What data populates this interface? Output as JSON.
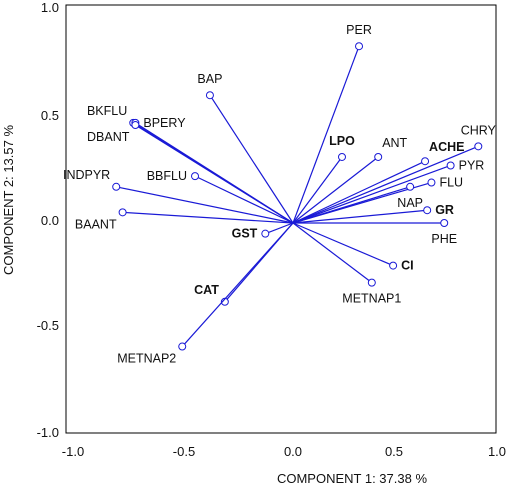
{
  "chart_data": {
    "type": "scatter",
    "subtype": "biplot-vectors",
    "xlabel": "COMPONENT 1:  37.38 %",
    "ylabel": "COMPONENT 2: 13.57 %",
    "xlim": [
      -1.0,
      1.0
    ],
    "ylim": [
      -1.0,
      1.0
    ],
    "x_ticks": [
      "-1.0",
      "-0.5",
      "0.0",
      "0.5",
      "1.0"
    ],
    "y_ticks": [
      "1.0",
      "0.5",
      "0.0",
      "-0.5",
      "-1.0"
    ],
    "grid": false,
    "colors": {
      "vector": "#1a1ad6",
      "frame": "#000000"
    },
    "points": [
      {
        "label": "PER",
        "x": 0.31,
        "y": 0.83,
        "bold": false,
        "anchor": "top"
      },
      {
        "label": "BAP",
        "x": -0.39,
        "y": 0.6,
        "bold": false,
        "anchor": "top"
      },
      {
        "label": "BKFLU",
        "x": -0.75,
        "y": 0.47,
        "bold": false,
        "anchor": "topleft"
      },
      {
        "label": "BPERY",
        "x": -0.74,
        "y": 0.47,
        "bold": false,
        "anchor": "right"
      },
      {
        "label": "DBANT",
        "x": -0.74,
        "y": 0.46,
        "bold": false,
        "anchor": "bottomleft"
      },
      {
        "label": "INDPYR",
        "x": -0.83,
        "y": 0.17,
        "bold": false,
        "anchor": "topleft"
      },
      {
        "label": "BBFLU",
        "x": -0.46,
        "y": 0.22,
        "bold": false,
        "anchor": "left"
      },
      {
        "label": "BAANT",
        "x": -0.8,
        "y": 0.05,
        "bold": false,
        "anchor": "bottomleft"
      },
      {
        "label": "LPO",
        "x": 0.23,
        "y": 0.31,
        "bold": true,
        "anchor": "top"
      },
      {
        "label": "ANT",
        "x": 0.4,
        "y": 0.31,
        "bold": false,
        "anchor": "topright"
      },
      {
        "label": "ACHE",
        "x": 0.62,
        "y": 0.29,
        "bold": true,
        "anchor": "topright"
      },
      {
        "label": "CHRY",
        "x": 0.87,
        "y": 0.36,
        "bold": false,
        "anchor": "top"
      },
      {
        "label": "PYR",
        "x": 0.74,
        "y": 0.27,
        "bold": false,
        "anchor": "right"
      },
      {
        "label": "FLU",
        "x": 0.65,
        "y": 0.19,
        "bold": false,
        "anchor": "right"
      },
      {
        "label": "NAP",
        "x": 0.55,
        "y": 0.17,
        "bold": false,
        "anchor": "bottom"
      },
      {
        "label": "GR",
        "x": 0.63,
        "y": 0.06,
        "bold": true,
        "anchor": "right"
      },
      {
        "label": "PHE",
        "x": 0.71,
        "y": 0.0,
        "bold": false,
        "anchor": "bottom"
      },
      {
        "label": "GST",
        "x": -0.13,
        "y": -0.05,
        "bold": true,
        "anchor": "left"
      },
      {
        "label": "CI",
        "x": 0.47,
        "y": -0.2,
        "bold": true,
        "anchor": "right"
      },
      {
        "label": "METNAP1",
        "x": 0.37,
        "y": -0.28,
        "bold": false,
        "anchor": "bottom"
      },
      {
        "label": "CAT",
        "x": -0.32,
        "y": -0.37,
        "bold": true,
        "anchor": "topleft"
      },
      {
        "label": "METNAP2",
        "x": -0.52,
        "y": -0.58,
        "bold": false,
        "anchor": "bottomleft"
      }
    ]
  }
}
